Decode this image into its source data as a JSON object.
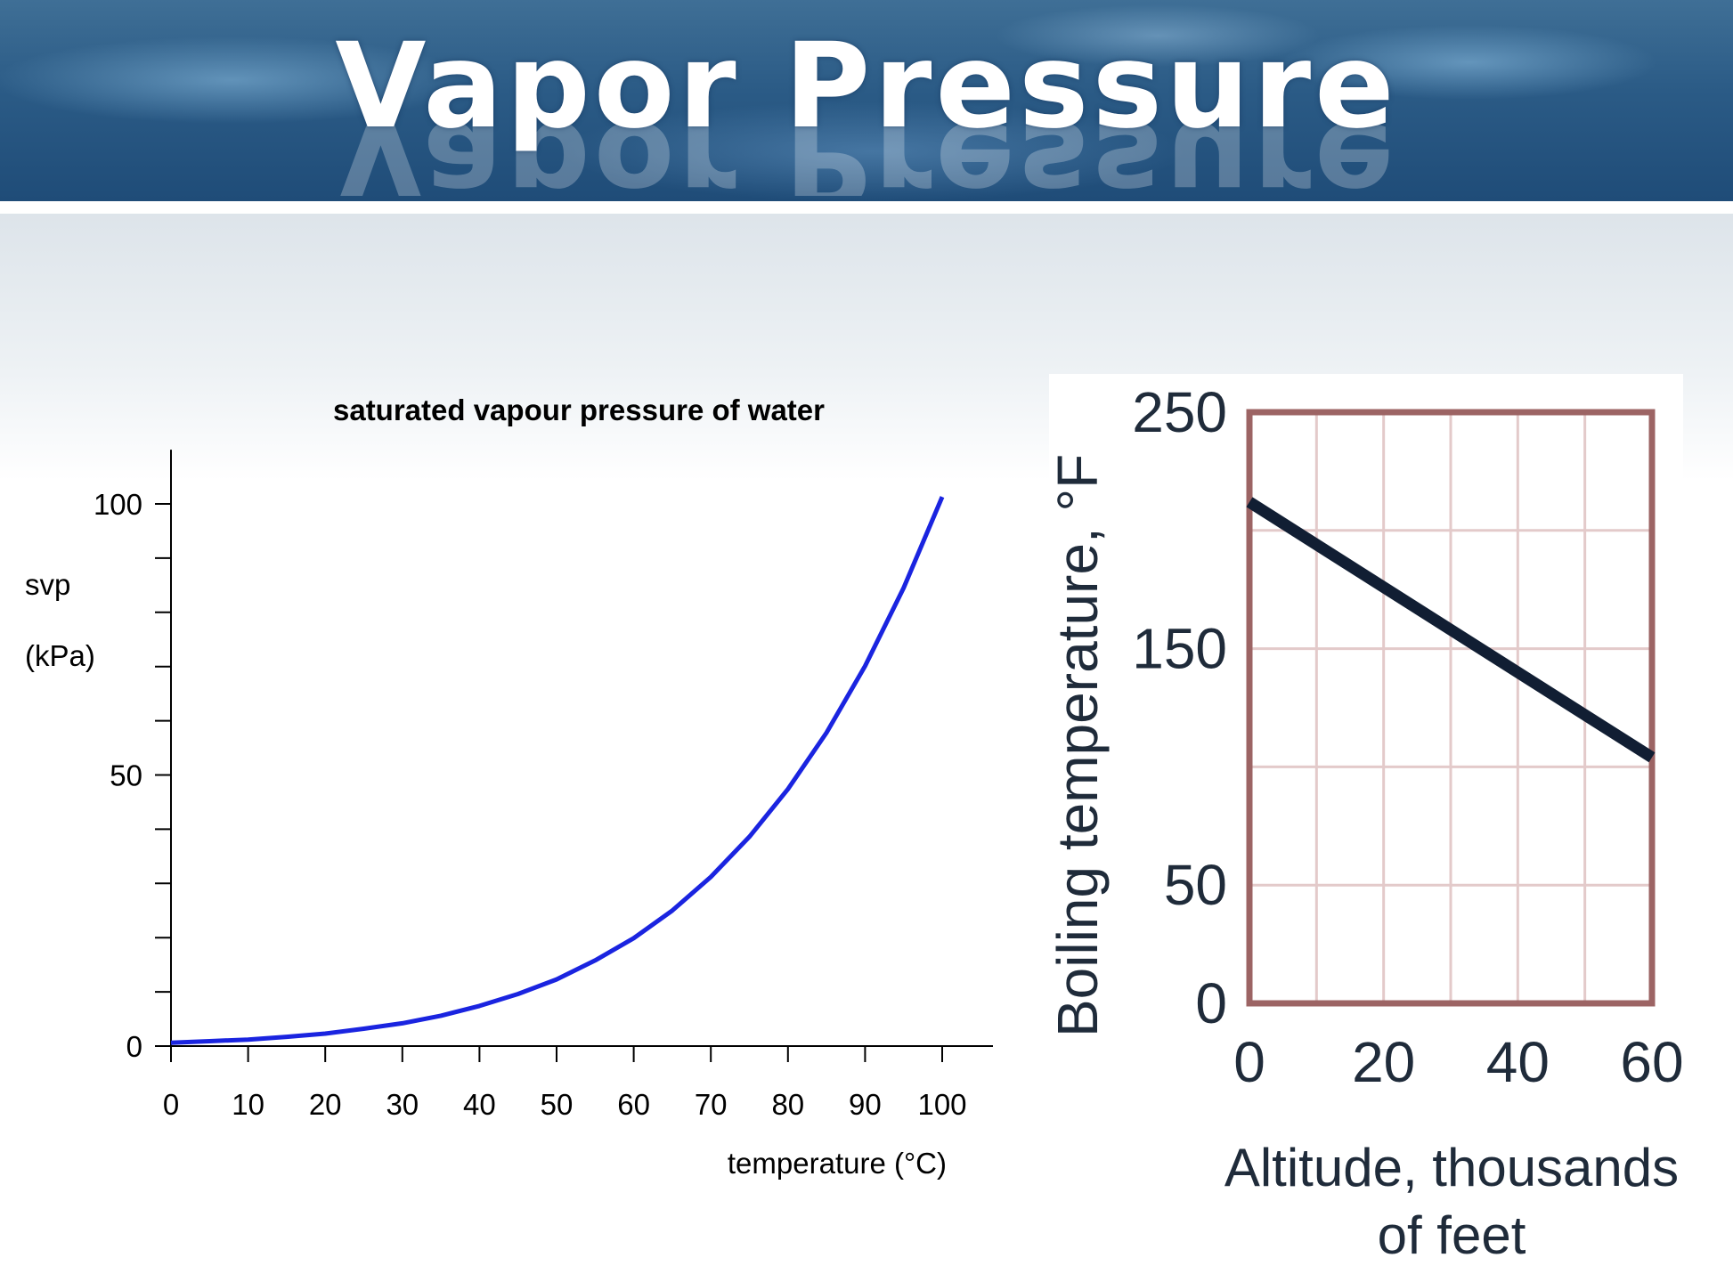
{
  "slide": {
    "title": "Vapor Pressure"
  },
  "chart_data": [
    {
      "type": "line",
      "title": "saturated vapour pressure of water",
      "xlabel": "temperature (°C)",
      "ylabel_line1": "svp",
      "ylabel_line2": "(kPa)",
      "xlim": [
        0,
        100
      ],
      "ylim": [
        0,
        110
      ],
      "x_ticks": [
        "0",
        "10",
        "20",
        "30",
        "40",
        "50",
        "60",
        "70",
        "80",
        "90",
        "100"
      ],
      "y_ticks": [
        "0",
        "50",
        "100"
      ],
      "color": "#1a24e0",
      "series": [
        {
          "x": [
            0,
            5,
            10,
            15,
            20,
            25,
            30,
            35,
            40,
            45,
            50,
            55,
            60,
            65,
            70,
            75,
            80,
            85,
            90,
            95,
            100
          ],
          "values": [
            0.6,
            0.9,
            1.2,
            1.7,
            2.3,
            3.2,
            4.2,
            5.6,
            7.4,
            9.6,
            12.3,
            15.8,
            19.9,
            25.0,
            31.2,
            38.6,
            47.4,
            57.8,
            70.1,
            84.5,
            101.3
          ]
        }
      ]
    },
    {
      "type": "line",
      "xlabel_line1": "Altitude, thousands",
      "xlabel_line2": "of feet",
      "ylabel": "Boiling temperature, °F",
      "xlim": [
        0,
        60
      ],
      "ylim": [
        0,
        250
      ],
      "x_ticks": [
        "0",
        "20",
        "40",
        "60"
      ],
      "y_ticks": [
        "0",
        "50",
        "150",
        "250"
      ],
      "grid": true,
      "color": "#111e33",
      "series": [
        {
          "x": [
            0,
            60
          ],
          "values": [
            212,
            104
          ]
        }
      ]
    }
  ]
}
